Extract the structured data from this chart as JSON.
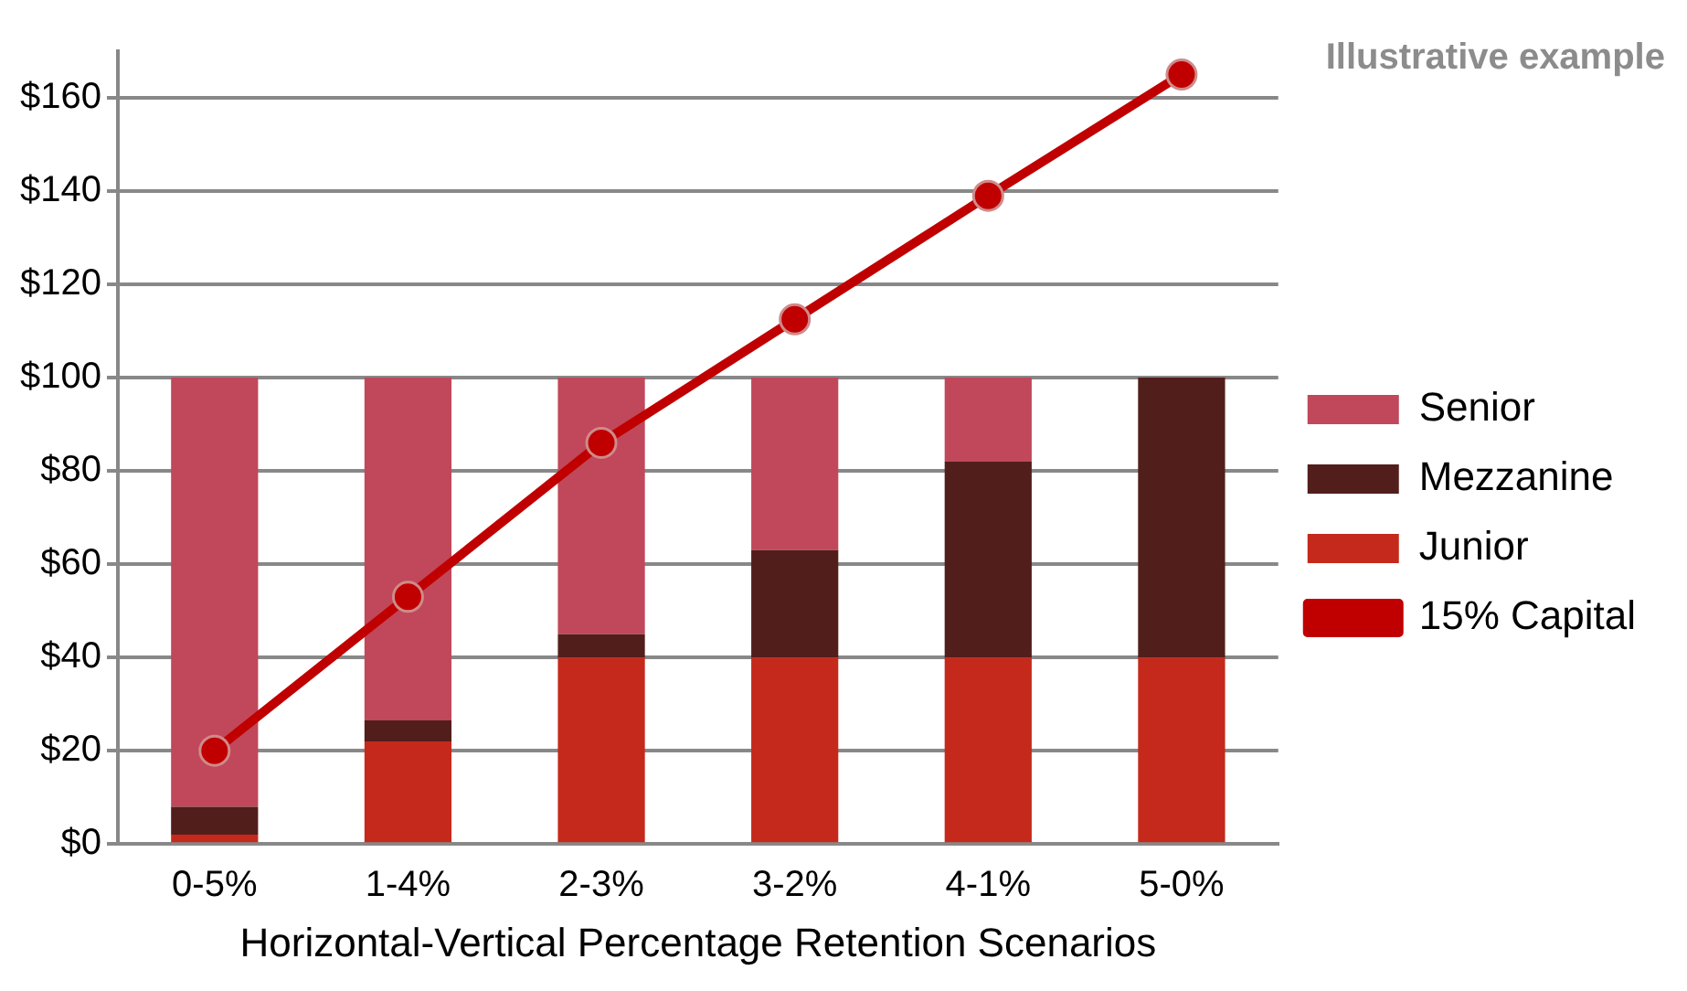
{
  "chart_data": {
    "type": "bar",
    "stacked": true,
    "categories": [
      "0-5%",
      "1-4%",
      "2-3%",
      "3-2%",
      "4-1%",
      "5-0%"
    ],
    "series": [
      {
        "name": "Junior",
        "color": "#c5291b",
        "values": [
          2,
          22,
          40,
          40,
          40,
          40
        ]
      },
      {
        "name": "Mezzanine",
        "color": "#521e1c",
        "values": [
          6,
          4.5,
          5,
          23,
          42,
          60
        ]
      },
      {
        "name": "Senior",
        "color": "#c0485a",
        "values": [
          92,
          73.5,
          55,
          37,
          18,
          0
        ]
      },
      {
        "name": "15% Capital",
        "type": "line",
        "color": "#c00000",
        "values": [
          20,
          53,
          86,
          112.5,
          139,
          165
        ]
      }
    ],
    "xlabel": "Horizontal-Vertical Percentage Retention Scenarios",
    "ylim": [
      0,
      170
    ],
    "yticks": [
      {
        "value": 0,
        "label": "$0"
      },
      {
        "value": 20,
        "label": "$20"
      },
      {
        "value": 40,
        "label": "$40"
      },
      {
        "value": 60,
        "label": "$60"
      },
      {
        "value": 80,
        "label": "$80"
      },
      {
        "value": 100,
        "label": "$100"
      },
      {
        "value": 120,
        "label": "$120"
      },
      {
        "value": 140,
        "label": "$140"
      },
      {
        "value": 160,
        "label": "$160"
      }
    ],
    "grid": "y",
    "legend": "right",
    "marker": "circle",
    "annotations": [
      "Illustrative example"
    ]
  }
}
